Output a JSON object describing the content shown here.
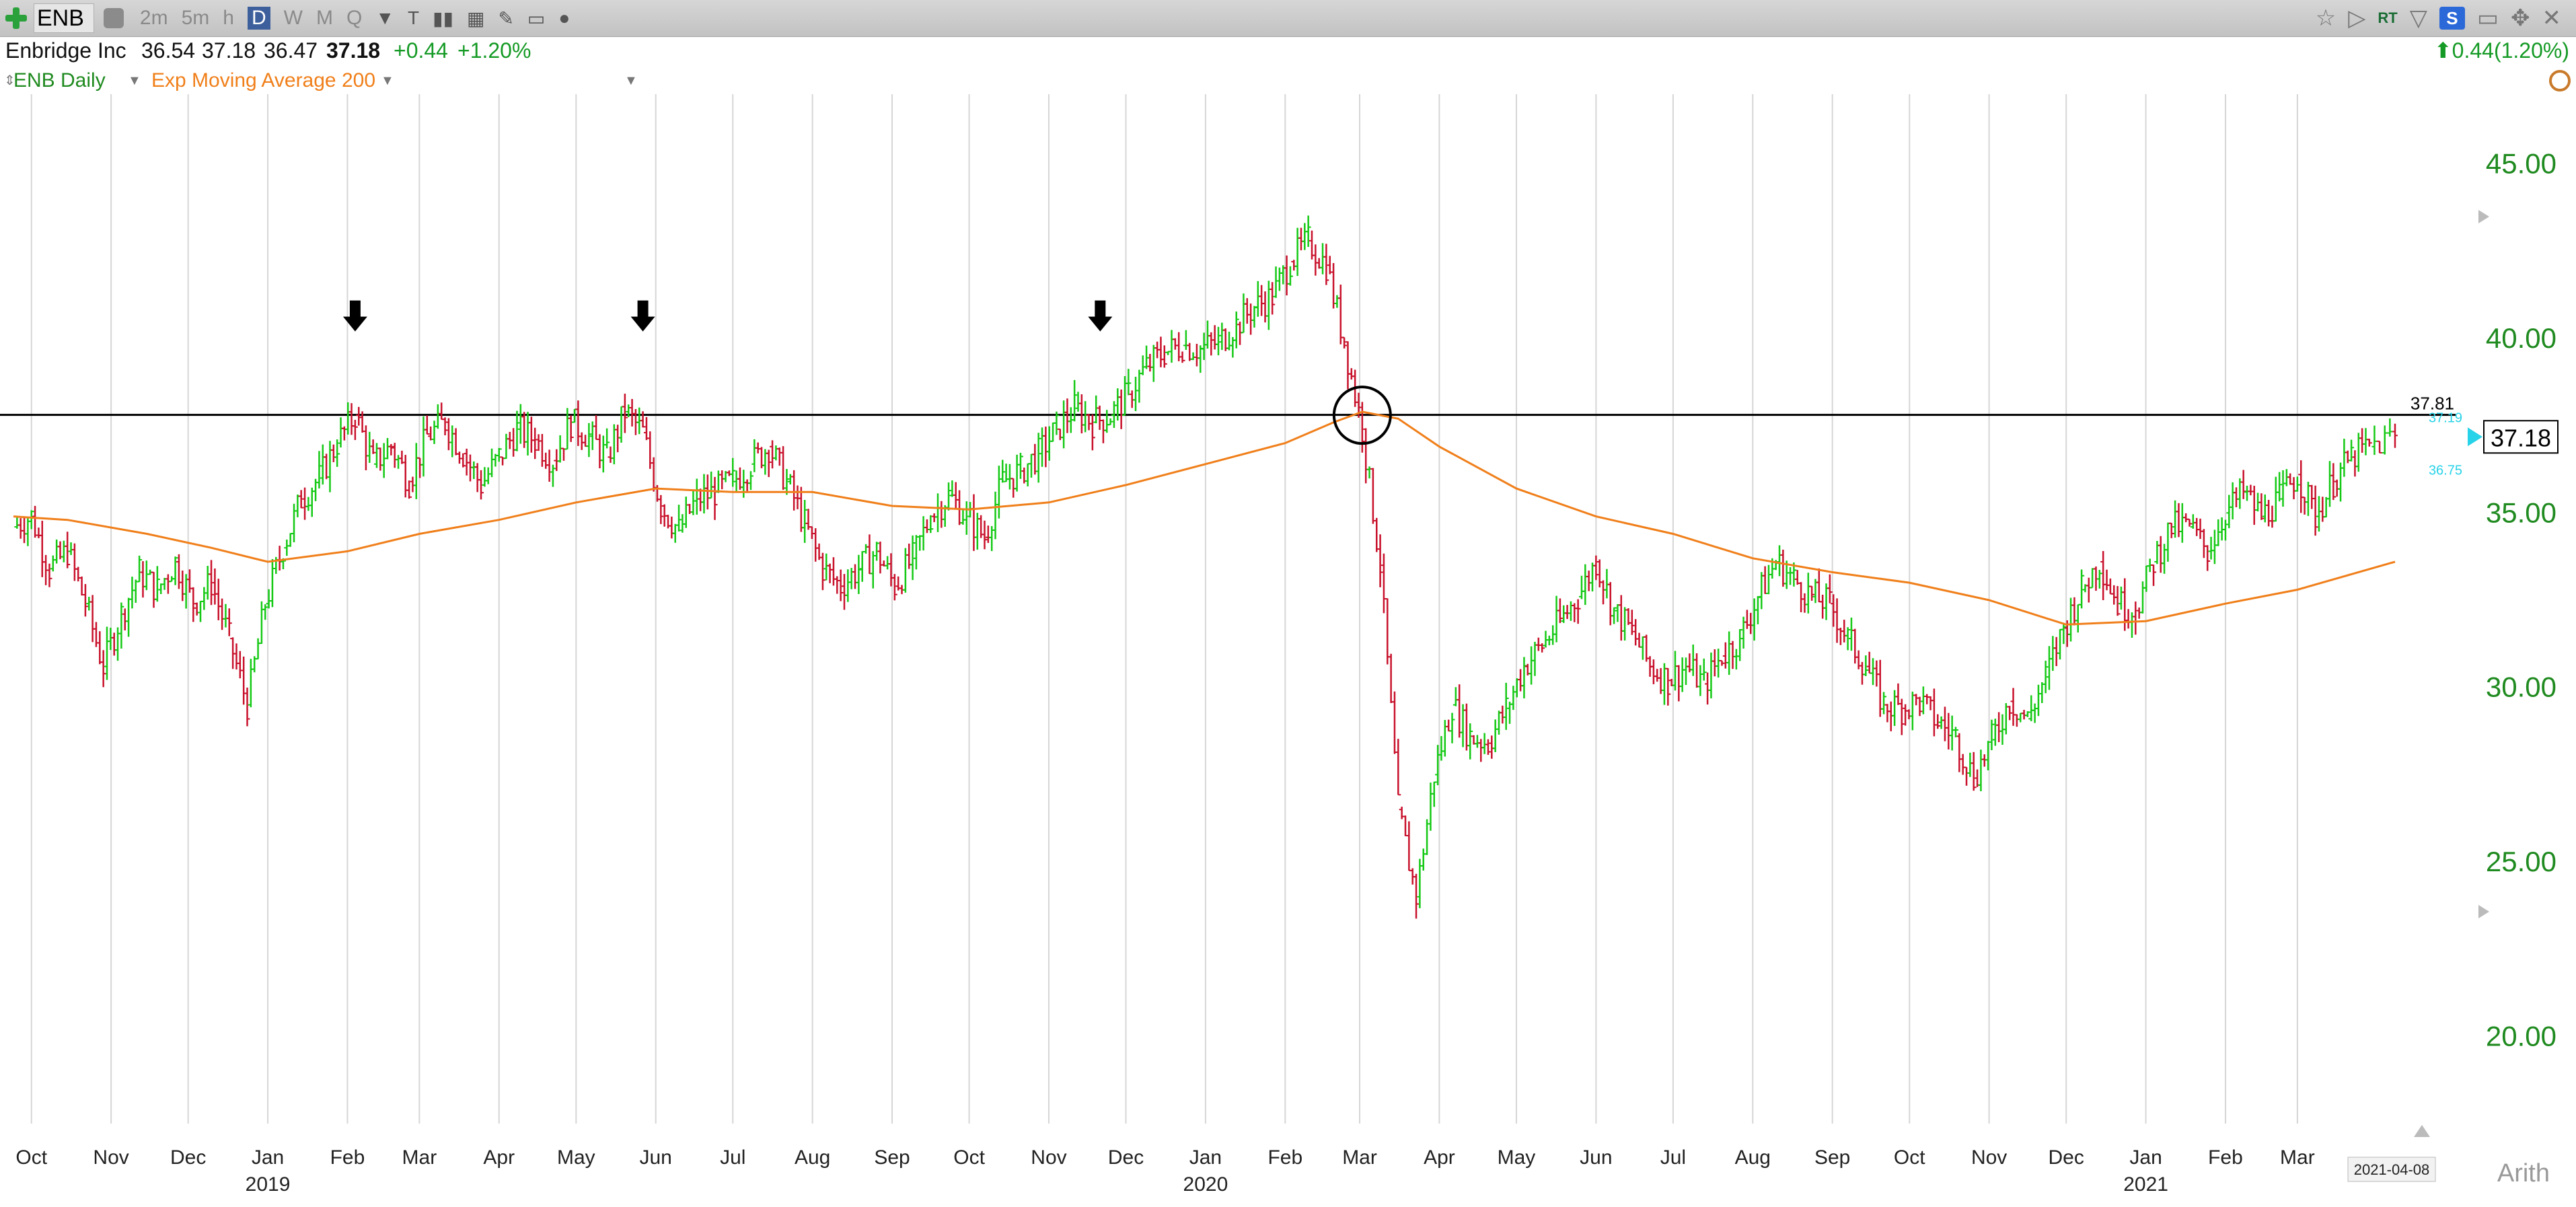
{
  "toolbar": {
    "symbol": "ENB",
    "intervals": [
      "2m",
      "5m",
      "h",
      "D",
      "W",
      "M",
      "Q"
    ],
    "selected_interval": "D",
    "rt_label": "RT",
    "s_label": "S"
  },
  "quote": {
    "name": "Enbridge Inc",
    "open": "36.54",
    "high": "37.18",
    "low": "36.47",
    "last": "37.18",
    "change": "+0.44",
    "change_pct": "+1.20%",
    "right_change": "0.44(1.20%)"
  },
  "legend": {
    "series": "ENB Daily",
    "indicator": "Exp Moving Average 200"
  },
  "chart_data": {
    "type": "bar",
    "title": "",
    "xlabel": "",
    "ylabel": "",
    "ylim": [
      17.5,
      47.0
    ],
    "y_ticks": [
      "45.00",
      "40.00",
      "35.00",
      "30.00",
      "25.00",
      "20.00"
    ],
    "x_ticks": [
      {
        "label": "Oct",
        "date": "2018-10-01"
      },
      {
        "label": "Nov",
        "date": "2018-11-01"
      },
      {
        "label": "Dec",
        "date": "2018-12-01"
      },
      {
        "label": "Jan",
        "date": "2019-01-01"
      },
      {
        "label": "Feb",
        "date": "2019-02-01"
      },
      {
        "label": "Mar",
        "date": "2019-03-01"
      },
      {
        "label": "Apr",
        "date": "2019-04-01"
      },
      {
        "label": "May",
        "date": "2019-05-01"
      },
      {
        "label": "Jun",
        "date": "2019-06-01"
      },
      {
        "label": "Jul",
        "date": "2019-07-01"
      },
      {
        "label": "Aug",
        "date": "2019-08-01"
      },
      {
        "label": "Sep",
        "date": "2019-09-01"
      },
      {
        "label": "Oct",
        "date": "2019-10-01"
      },
      {
        "label": "Nov",
        "date": "2019-11-01"
      },
      {
        "label": "Dec",
        "date": "2019-12-01"
      },
      {
        "label": "Jan",
        "date": "2020-01-01"
      },
      {
        "label": "Feb",
        "date": "2020-02-01"
      },
      {
        "label": "Mar",
        "date": "2020-03-01"
      },
      {
        "label": "Apr",
        "date": "2020-04-01"
      },
      {
        "label": "May",
        "date": "2020-05-01"
      },
      {
        "label": "Jun",
        "date": "2020-06-01"
      },
      {
        "label": "Jul",
        "date": "2020-07-01"
      },
      {
        "label": "Aug",
        "date": "2020-08-01"
      },
      {
        "label": "Sep",
        "date": "2020-09-01"
      },
      {
        "label": "Oct",
        "date": "2020-10-01"
      },
      {
        "label": "Nov",
        "date": "2020-11-01"
      },
      {
        "label": "Dec",
        "date": "2020-12-01"
      },
      {
        "label": "Jan",
        "date": "2021-01-01"
      },
      {
        "label": "Feb",
        "date": "2021-02-01"
      },
      {
        "label": "Mar",
        "date": "2021-03-01"
      }
    ],
    "year_labels": [
      {
        "label": "2019",
        "date": "2019-01-01"
      },
      {
        "label": "2020",
        "date": "2020-01-01"
      },
      {
        "label": "2021",
        "date": "2021-01-01"
      }
    ],
    "start_date": "2018-09-24",
    "end_date": "2021-04-08",
    "date_badge": "2021-04-08",
    "scale_label": "Arith",
    "price_series": [
      {
        "date": "2018-09-24",
        "value": 34.6
      },
      {
        "date": "2018-10-01",
        "value": 34.9
      },
      {
        "date": "2018-10-08",
        "value": 33.4
      },
      {
        "date": "2018-10-15",
        "value": 33.9
      },
      {
        "date": "2018-10-22",
        "value": 32.4
      },
      {
        "date": "2018-10-29",
        "value": 30.6
      },
      {
        "date": "2018-11-05",
        "value": 32.1
      },
      {
        "date": "2018-11-12",
        "value": 33.3
      },
      {
        "date": "2018-11-19",
        "value": 32.8
      },
      {
        "date": "2018-11-26",
        "value": 33.6
      },
      {
        "date": "2018-12-03",
        "value": 32.4
      },
      {
        "date": "2018-12-10",
        "value": 33.0
      },
      {
        "date": "2018-12-17",
        "value": 31.4
      },
      {
        "date": "2018-12-24",
        "value": 29.5
      },
      {
        "date": "2018-12-31",
        "value": 32.4
      },
      {
        "date": "2019-01-07",
        "value": 34.0
      },
      {
        "date": "2019-01-14",
        "value": 35.4
      },
      {
        "date": "2019-01-21",
        "value": 36.0
      },
      {
        "date": "2019-01-28",
        "value": 37.0
      },
      {
        "date": "2019-02-04",
        "value": 37.8
      },
      {
        "date": "2019-02-11",
        "value": 36.4
      },
      {
        "date": "2019-02-18",
        "value": 36.9
      },
      {
        "date": "2019-02-25",
        "value": 35.9
      },
      {
        "date": "2019-03-04",
        "value": 37.2
      },
      {
        "date": "2019-03-11",
        "value": 37.6
      },
      {
        "date": "2019-03-18",
        "value": 36.7
      },
      {
        "date": "2019-03-25",
        "value": 35.8
      },
      {
        "date": "2019-04-01",
        "value": 36.6
      },
      {
        "date": "2019-04-08",
        "value": 37.4
      },
      {
        "date": "2019-04-15",
        "value": 37.1
      },
      {
        "date": "2019-04-22",
        "value": 36.5
      },
      {
        "date": "2019-04-29",
        "value": 37.6
      },
      {
        "date": "2019-05-06",
        "value": 37.2
      },
      {
        "date": "2019-05-13",
        "value": 36.6
      },
      {
        "date": "2019-05-20",
        "value": 37.9
      },
      {
        "date": "2019-05-27",
        "value": 37.3
      },
      {
        "date": "2019-06-03",
        "value": 35.2
      },
      {
        "date": "2019-06-10",
        "value": 34.5
      },
      {
        "date": "2019-06-17",
        "value": 35.4
      },
      {
        "date": "2019-06-24",
        "value": 35.6
      },
      {
        "date": "2019-07-01",
        "value": 35.9
      },
      {
        "date": "2019-07-08",
        "value": 36.4
      },
      {
        "date": "2019-07-15",
        "value": 36.9
      },
      {
        "date": "2019-07-22",
        "value": 35.9
      },
      {
        "date": "2019-07-29",
        "value": 34.7
      },
      {
        "date": "2019-08-05",
        "value": 33.4
      },
      {
        "date": "2019-08-12",
        "value": 32.9
      },
      {
        "date": "2019-08-19",
        "value": 33.4
      },
      {
        "date": "2019-08-26",
        "value": 33.9
      },
      {
        "date": "2019-09-02",
        "value": 32.9
      },
      {
        "date": "2019-09-09",
        "value": 33.7
      },
      {
        "date": "2019-09-16",
        "value": 34.9
      },
      {
        "date": "2019-09-23",
        "value": 35.5
      },
      {
        "date": "2019-09-30",
        "value": 34.9
      },
      {
        "date": "2019-10-07",
        "value": 34.3
      },
      {
        "date": "2019-10-14",
        "value": 35.9
      },
      {
        "date": "2019-10-21",
        "value": 36.2
      },
      {
        "date": "2019-10-28",
        "value": 36.7
      },
      {
        "date": "2019-11-04",
        "value": 37.4
      },
      {
        "date": "2019-11-11",
        "value": 38.0
      },
      {
        "date": "2019-11-18",
        "value": 37.6
      },
      {
        "date": "2019-11-25",
        "value": 37.8
      },
      {
        "date": "2019-12-02",
        "value": 38.4
      },
      {
        "date": "2019-12-09",
        "value": 39.2
      },
      {
        "date": "2019-12-16",
        "value": 39.6
      },
      {
        "date": "2019-12-23",
        "value": 39.8
      },
      {
        "date": "2019-12-30",
        "value": 39.7
      },
      {
        "date": "2020-01-06",
        "value": 39.9
      },
      {
        "date": "2020-01-13",
        "value": 40.4
      },
      {
        "date": "2020-01-20",
        "value": 40.9
      },
      {
        "date": "2020-01-27",
        "value": 41.2
      },
      {
        "date": "2020-02-03",
        "value": 42.2
      },
      {
        "date": "2020-02-10",
        "value": 42.8
      },
      {
        "date": "2020-02-17",
        "value": 42.1
      },
      {
        "date": "2020-02-24",
        "value": 39.9
      },
      {
        "date": "2020-03-02",
        "value": 37.4
      },
      {
        "date": "2020-03-09",
        "value": 33.5
      },
      {
        "date": "2020-03-16",
        "value": 26.5
      },
      {
        "date": "2020-03-23",
        "value": 24.0
      },
      {
        "date": "2020-03-30",
        "value": 27.5
      },
      {
        "date": "2020-04-06",
        "value": 29.5
      },
      {
        "date": "2020-04-13",
        "value": 28.6
      },
      {
        "date": "2020-04-20",
        "value": 28.4
      },
      {
        "date": "2020-04-27",
        "value": 29.4
      },
      {
        "date": "2020-05-04",
        "value": 30.6
      },
      {
        "date": "2020-05-11",
        "value": 31.2
      },
      {
        "date": "2020-05-18",
        "value": 31.9
      },
      {
        "date": "2020-05-25",
        "value": 32.6
      },
      {
        "date": "2020-06-01",
        "value": 33.6
      },
      {
        "date": "2020-06-08",
        "value": 32.2
      },
      {
        "date": "2020-06-15",
        "value": 31.6
      },
      {
        "date": "2020-06-22",
        "value": 30.6
      },
      {
        "date": "2020-06-29",
        "value": 30.2
      },
      {
        "date": "2020-07-06",
        "value": 30.6
      },
      {
        "date": "2020-07-13",
        "value": 30.1
      },
      {
        "date": "2020-07-20",
        "value": 30.9
      },
      {
        "date": "2020-07-27",
        "value": 31.4
      },
      {
        "date": "2020-08-03",
        "value": 32.6
      },
      {
        "date": "2020-08-10",
        "value": 33.6
      },
      {
        "date": "2020-08-17",
        "value": 33.1
      },
      {
        "date": "2020-08-24",
        "value": 32.6
      },
      {
        "date": "2020-08-31",
        "value": 32.4
      },
      {
        "date": "2020-09-07",
        "value": 31.4
      },
      {
        "date": "2020-09-14",
        "value": 30.6
      },
      {
        "date": "2020-09-21",
        "value": 29.5
      },
      {
        "date": "2020-09-28",
        "value": 29.4
      },
      {
        "date": "2020-10-05",
        "value": 29.6
      },
      {
        "date": "2020-10-12",
        "value": 29.0
      },
      {
        "date": "2020-10-19",
        "value": 28.6
      },
      {
        "date": "2020-10-26",
        "value": 27.4
      },
      {
        "date": "2020-11-02",
        "value": 28.5
      },
      {
        "date": "2020-11-09",
        "value": 29.6
      },
      {
        "date": "2020-11-16",
        "value": 29.1
      },
      {
        "date": "2020-11-23",
        "value": 30.3
      },
      {
        "date": "2020-11-30",
        "value": 31.7
      },
      {
        "date": "2020-12-07",
        "value": 32.8
      },
      {
        "date": "2020-12-14",
        "value": 33.6
      },
      {
        "date": "2020-12-21",
        "value": 32.4
      },
      {
        "date": "2020-12-28",
        "value": 32.2
      },
      {
        "date": "2021-01-04",
        "value": 33.6
      },
      {
        "date": "2021-01-11",
        "value": 34.6
      },
      {
        "date": "2021-01-18",
        "value": 34.6
      },
      {
        "date": "2021-01-25",
        "value": 33.9
      },
      {
        "date": "2021-02-01",
        "value": 35.0
      },
      {
        "date": "2021-02-08",
        "value": 35.6
      },
      {
        "date": "2021-02-15",
        "value": 34.9
      },
      {
        "date": "2021-02-22",
        "value": 35.4
      },
      {
        "date": "2021-03-01",
        "value": 36.1
      },
      {
        "date": "2021-03-08",
        "value": 34.9
      },
      {
        "date": "2021-03-15",
        "value": 35.9
      },
      {
        "date": "2021-03-22",
        "value": 36.6
      },
      {
        "date": "2021-03-29",
        "value": 36.9
      },
      {
        "date": "2021-04-08",
        "value": 37.18
      }
    ],
    "ema_200": [
      {
        "date": "2018-09-24",
        "value": 34.9
      },
      {
        "date": "2018-10-15",
        "value": 34.8
      },
      {
        "date": "2018-11-15",
        "value": 34.4
      },
      {
        "date": "2018-12-10",
        "value": 34.0
      },
      {
        "date": "2019-01-01",
        "value": 33.6
      },
      {
        "date": "2019-02-01",
        "value": 33.9
      },
      {
        "date": "2019-03-01",
        "value": 34.4
      },
      {
        "date": "2019-04-01",
        "value": 34.8
      },
      {
        "date": "2019-05-01",
        "value": 35.3
      },
      {
        "date": "2019-06-01",
        "value": 35.7
      },
      {
        "date": "2019-07-01",
        "value": 35.6
      },
      {
        "date": "2019-08-01",
        "value": 35.6
      },
      {
        "date": "2019-09-01",
        "value": 35.2
      },
      {
        "date": "2019-10-01",
        "value": 35.1
      },
      {
        "date": "2019-11-01",
        "value": 35.3
      },
      {
        "date": "2019-12-01",
        "value": 35.8
      },
      {
        "date": "2020-01-01",
        "value": 36.4
      },
      {
        "date": "2020-02-01",
        "value": 37.0
      },
      {
        "date": "2020-02-20",
        "value": 37.6
      },
      {
        "date": "2020-03-02",
        "value": 37.9
      },
      {
        "date": "2020-03-16",
        "value": 37.7
      },
      {
        "date": "2020-04-01",
        "value": 36.9
      },
      {
        "date": "2020-05-01",
        "value": 35.7
      },
      {
        "date": "2020-06-01",
        "value": 34.9
      },
      {
        "date": "2020-07-01",
        "value": 34.4
      },
      {
        "date": "2020-08-01",
        "value": 33.7
      },
      {
        "date": "2020-09-01",
        "value": 33.3
      },
      {
        "date": "2020-10-01",
        "value": 33.0
      },
      {
        "date": "2020-11-01",
        "value": 32.5
      },
      {
        "date": "2020-12-01",
        "value": 31.8
      },
      {
        "date": "2021-01-01",
        "value": 31.9
      },
      {
        "date": "2021-02-01",
        "value": 32.4
      },
      {
        "date": "2021-03-01",
        "value": 32.8
      },
      {
        "date": "2021-04-08",
        "value": 33.6
      }
    ],
    "horizontal_line": {
      "value": 37.81,
      "label": "37.81"
    },
    "last_price_label": "37.18",
    "small_price_labels": [
      "37.19",
      "36.75"
    ],
    "arrow_annotations": [
      "2019-02-04",
      "2019-05-27",
      "2019-11-21"
    ],
    "circle_annotation": {
      "date": "2020-03-02",
      "value": 37.8
    },
    "colors": {
      "up": "#15c915",
      "down": "#c8112b",
      "ema": "#f07f1a",
      "grid": "#d6d6d6",
      "axis_text": "#1f8a1f"
    }
  }
}
